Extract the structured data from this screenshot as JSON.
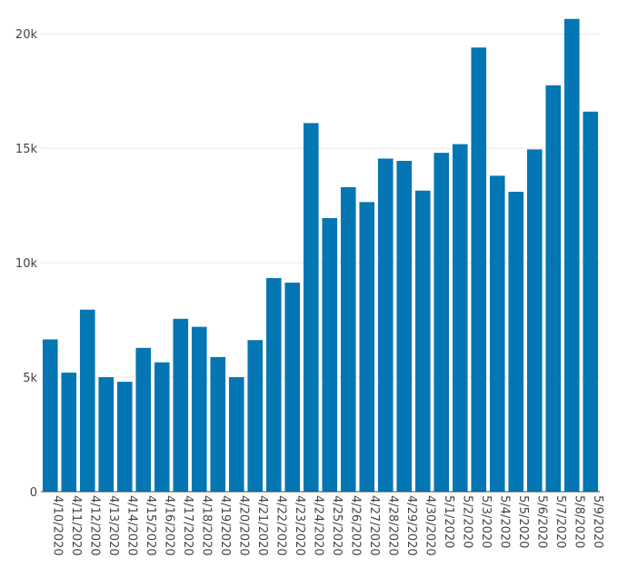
{
  "chart_data": {
    "type": "bar",
    "title": "",
    "xlabel": "",
    "ylabel": "",
    "categories": [
      "4/10/2020",
      "4/11/2020",
      "4/12/2020",
      "4/13/2020",
      "4/14/2020",
      "4/15/2020",
      "4/16/2020",
      "4/17/2020",
      "4/18/2020",
      "4/19/2020",
      "4/20/2020",
      "4/21/2020",
      "4/22/2020",
      "4/23/2020",
      "4/24/2020",
      "4/25/2020",
      "4/26/2020",
      "4/27/2020",
      "4/28/2020",
      "4/29/2020",
      "4/30/2020",
      "5/1/2020",
      "5/2/2020",
      "5/3/2020",
      "5/4/2020",
      "5/5/2020",
      "5/6/2020",
      "5/7/2020",
      "5/8/2020",
      "5/9/2020"
    ],
    "values": [
      6650,
      5200,
      7950,
      5000,
      4800,
      6280,
      5650,
      7550,
      7200,
      5880,
      5000,
      6620,
      9330,
      9130,
      16100,
      11950,
      13300,
      12650,
      14550,
      14450,
      13150,
      14800,
      15180,
      19400,
      13800,
      13100,
      14950,
      17750,
      20650,
      16600
    ],
    "ylim": [
      0,
      21000
    ],
    "yticks": [
      0,
      5000,
      10000,
      15000,
      20000
    ],
    "ytick_labels": [
      "0",
      "5k",
      "10k",
      "15k",
      "20k"
    ],
    "grid": true,
    "legend": "none",
    "colors": {
      "bar": "#0476b4",
      "grid": "#e8e8e8",
      "text": "#444444"
    }
  }
}
